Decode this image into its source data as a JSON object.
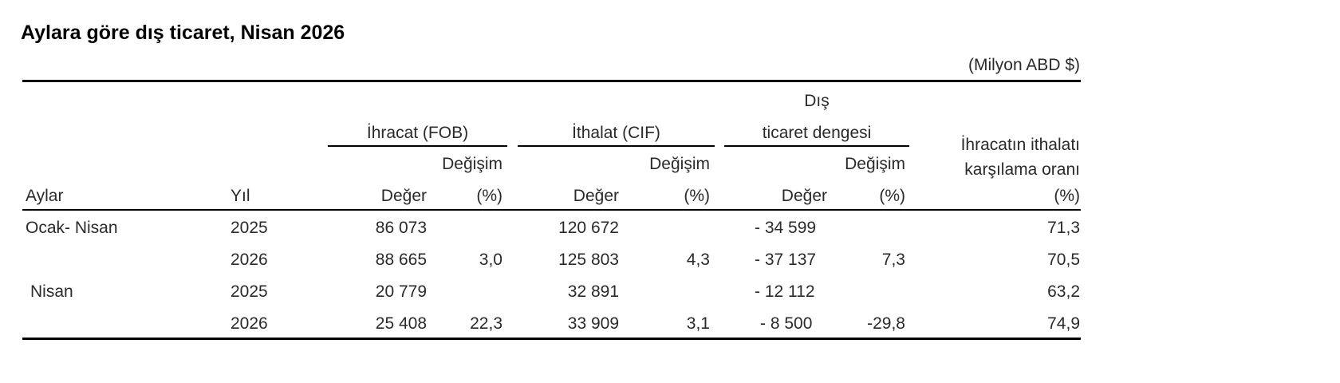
{
  "title": "Aylara göre dış ticaret, Nisan 2026",
  "unit": "(Milyon ABD $)",
  "headers": {
    "exports": "İhracat (FOB)",
    "imports": "İthalat (CIF)",
    "balance_line1": "Dış",
    "balance_line2": "ticaret dengesi",
    "ratio_line1": "İhracatın ithalatı",
    "ratio_line2": "karşılama oranı",
    "change": "Değişim",
    "months": "Aylar",
    "year": "Yıl",
    "value": "Değer",
    "pct": "(%)"
  },
  "rows": [
    {
      "period": "Ocak- Nisan",
      "year": "2025",
      "exp_val": "86 073",
      "exp_chg": "",
      "imp_val": "120 672",
      "imp_chg": "",
      "bal_val": "- 34 599",
      "bal_chg": "",
      "ratio": "71,3"
    },
    {
      "period": "",
      "year": "2026",
      "exp_val": "88 665",
      "exp_chg": "3,0",
      "imp_val": "125 803",
      "imp_chg": "4,3",
      "bal_val": "- 37 137",
      "bal_chg": "7,3",
      "ratio": "70,5"
    },
    {
      "period": "Nisan",
      "year": "2025",
      "exp_val": "20 779",
      "exp_chg": "",
      "imp_val": "32 891",
      "imp_chg": "",
      "bal_val": "- 12 112",
      "bal_chg": "",
      "ratio": "63,2"
    },
    {
      "period": "",
      "year": "2026",
      "exp_val": "25 408",
      "exp_chg": "22,3",
      "imp_val": "33 909",
      "imp_chg": "3,1",
      "bal_val": "- 8 500",
      "bal_chg": "-29,8",
      "ratio": "74,9"
    }
  ]
}
